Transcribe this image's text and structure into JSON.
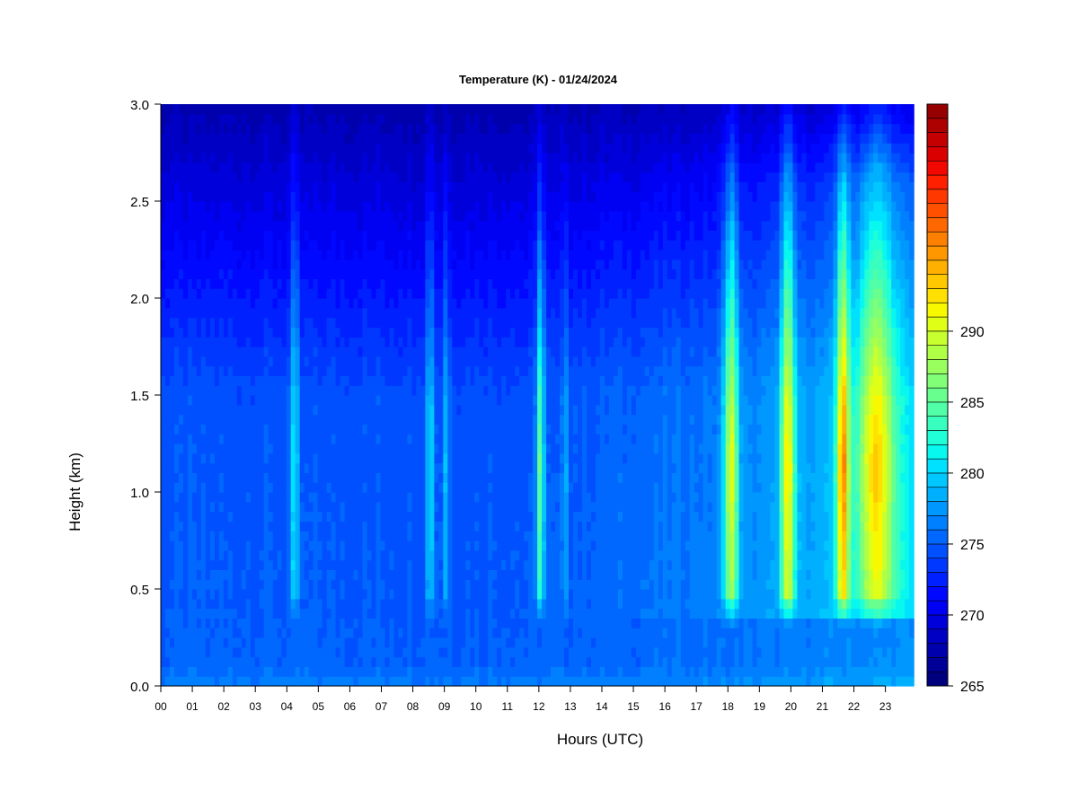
{
  "chart_data": {
    "type": "heatmap",
    "title": "Temperature (K) - 01/24/2024",
    "xlabel": "Hours (UTC)",
    "ylabel": "Height (km)",
    "x_ticks": [
      "00",
      "01",
      "02",
      "03",
      "04",
      "05",
      "06",
      "07",
      "08",
      "09",
      "10",
      "11",
      "12",
      "13",
      "14",
      "15",
      "16",
      "17",
      "18",
      "19",
      "20",
      "21",
      "22",
      "23"
    ],
    "xlim": [
      0,
      23.9
    ],
    "ylim": [
      0,
      3.0
    ],
    "y_ticks": [
      "0.0",
      "0.5",
      "1.0",
      "1.5",
      "2.0",
      "2.5",
      "3.0"
    ],
    "colorbar": {
      "range": [
        265,
        294
      ],
      "step": 1,
      "ticks": [
        "265",
        "270",
        "275",
        "280",
        "285",
        "290"
      ],
      "colors": [
        "#00007f",
        "#000096",
        "#0000ad",
        "#0000c4",
        "#0000db",
        "#0000f2",
        "#0008ff",
        "#0020ff",
        "#0038ff",
        "#0050ff",
        "#0068ff",
        "#0080ff",
        "#0098ff",
        "#00b0ff",
        "#00c8ff",
        "#00e0ff",
        "#08f8ef",
        "#20ffd7",
        "#38ffbf",
        "#50ffa7",
        "#68ff8f",
        "#80ff77",
        "#98ff5f",
        "#b0ff47",
        "#c8ff2f",
        "#e0ff17",
        "#f8f800",
        "#ffe000",
        "#ffc800",
        "#ffb000",
        "#ff9800",
        "#ff8000",
        "#ff6800",
        "#ff5000",
        "#ff3800",
        "#ff2000",
        "#f20800",
        "#db0000",
        "#c40000",
        "#ad0000",
        "#960000"
      ]
    },
    "structure": {
      "plumes": [
        {
          "hour": 4.25,
          "width": 0.13,
          "peak_temp": 281.5
        },
        {
          "hour": 8.55,
          "width": 0.12,
          "peak_temp": 281.5
        },
        {
          "hour": 9.05,
          "width": 0.1,
          "peak_temp": 279.5
        },
        {
          "hour": 12.05,
          "width": 0.12,
          "peak_temp": 286.5
        },
        {
          "hour": 12.85,
          "width": 0.1,
          "peak_temp": 278.5
        },
        {
          "hour": 18.1,
          "width": 0.22,
          "peak_temp": 289.5
        },
        {
          "hour": 19.9,
          "width": 0.22,
          "peak_temp": 290.0
        },
        {
          "hour": 21.65,
          "width": 0.2,
          "peak_temp": 292.5
        },
        {
          "hour": 22.7,
          "width": 0.6,
          "peak_temp": 289.0
        }
      ]
    }
  }
}
